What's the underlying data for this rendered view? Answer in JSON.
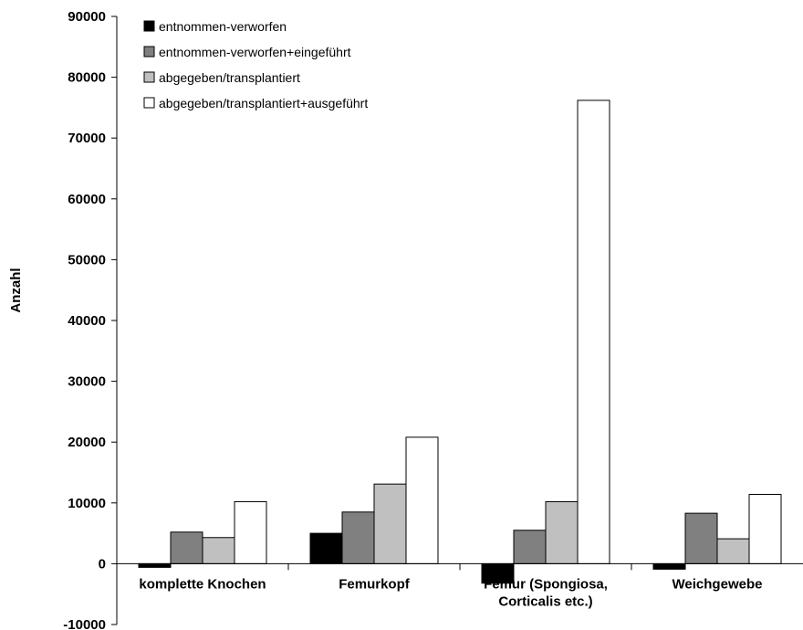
{
  "chart_data": {
    "type": "bar",
    "title": "",
    "xlabel": "",
    "ylabel": "Anzahl",
    "ylim": [
      -10000,
      90000
    ],
    "yticks": [
      -10000,
      0,
      10000,
      20000,
      30000,
      40000,
      50000,
      60000,
      70000,
      80000,
      90000
    ],
    "ytick_labels": [
      "-10000",
      "0",
      "10000",
      "20000",
      "30000",
      "40000",
      "50000",
      "60000",
      "70000",
      "80000",
      "90000"
    ],
    "grid": false,
    "legend_position": "top-left",
    "categories": [
      [
        "komplette Knochen"
      ],
      [
        "Femurkopf"
      ],
      [
        "Femur (Spongiosa,",
        "Corticalis etc.)"
      ],
      [
        "Weichgewebe"
      ]
    ],
    "series": [
      {
        "name": "entnommen-verworfen",
        "color": "#000000",
        "values": [
          -600,
          5000,
          -3200,
          -900
        ]
      },
      {
        "name": "entnommen-verworfen+eingeführt",
        "color": "#808080",
        "values": [
          5200,
          8500,
          5500,
          8300
        ]
      },
      {
        "name": "abgegeben/transplantiert",
        "color": "#c0c0c0",
        "values": [
          4300,
          13100,
          10200,
          4100
        ]
      },
      {
        "name": "abgegeben/transplantiert+ausgeführt",
        "color": "#ffffff",
        "values": [
          10200,
          20800,
          76200,
          11400
        ]
      }
    ]
  }
}
